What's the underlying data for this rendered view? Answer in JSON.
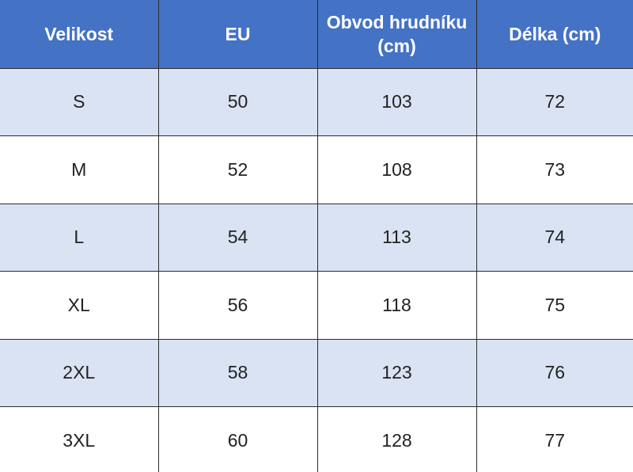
{
  "table": {
    "header": [
      "Velikost",
      "EU",
      "Obvod hrudníku (cm)",
      "Délka (cm)"
    ],
    "rows": [
      [
        "S",
        50,
        103,
        72
      ],
      [
        "M",
        52,
        108,
        73
      ],
      [
        "L",
        54,
        113,
        74
      ],
      [
        "XL",
        56,
        118,
        75
      ],
      [
        "2XL",
        58,
        123,
        76
      ],
      [
        "3XL",
        60,
        128,
        77
      ]
    ]
  }
}
